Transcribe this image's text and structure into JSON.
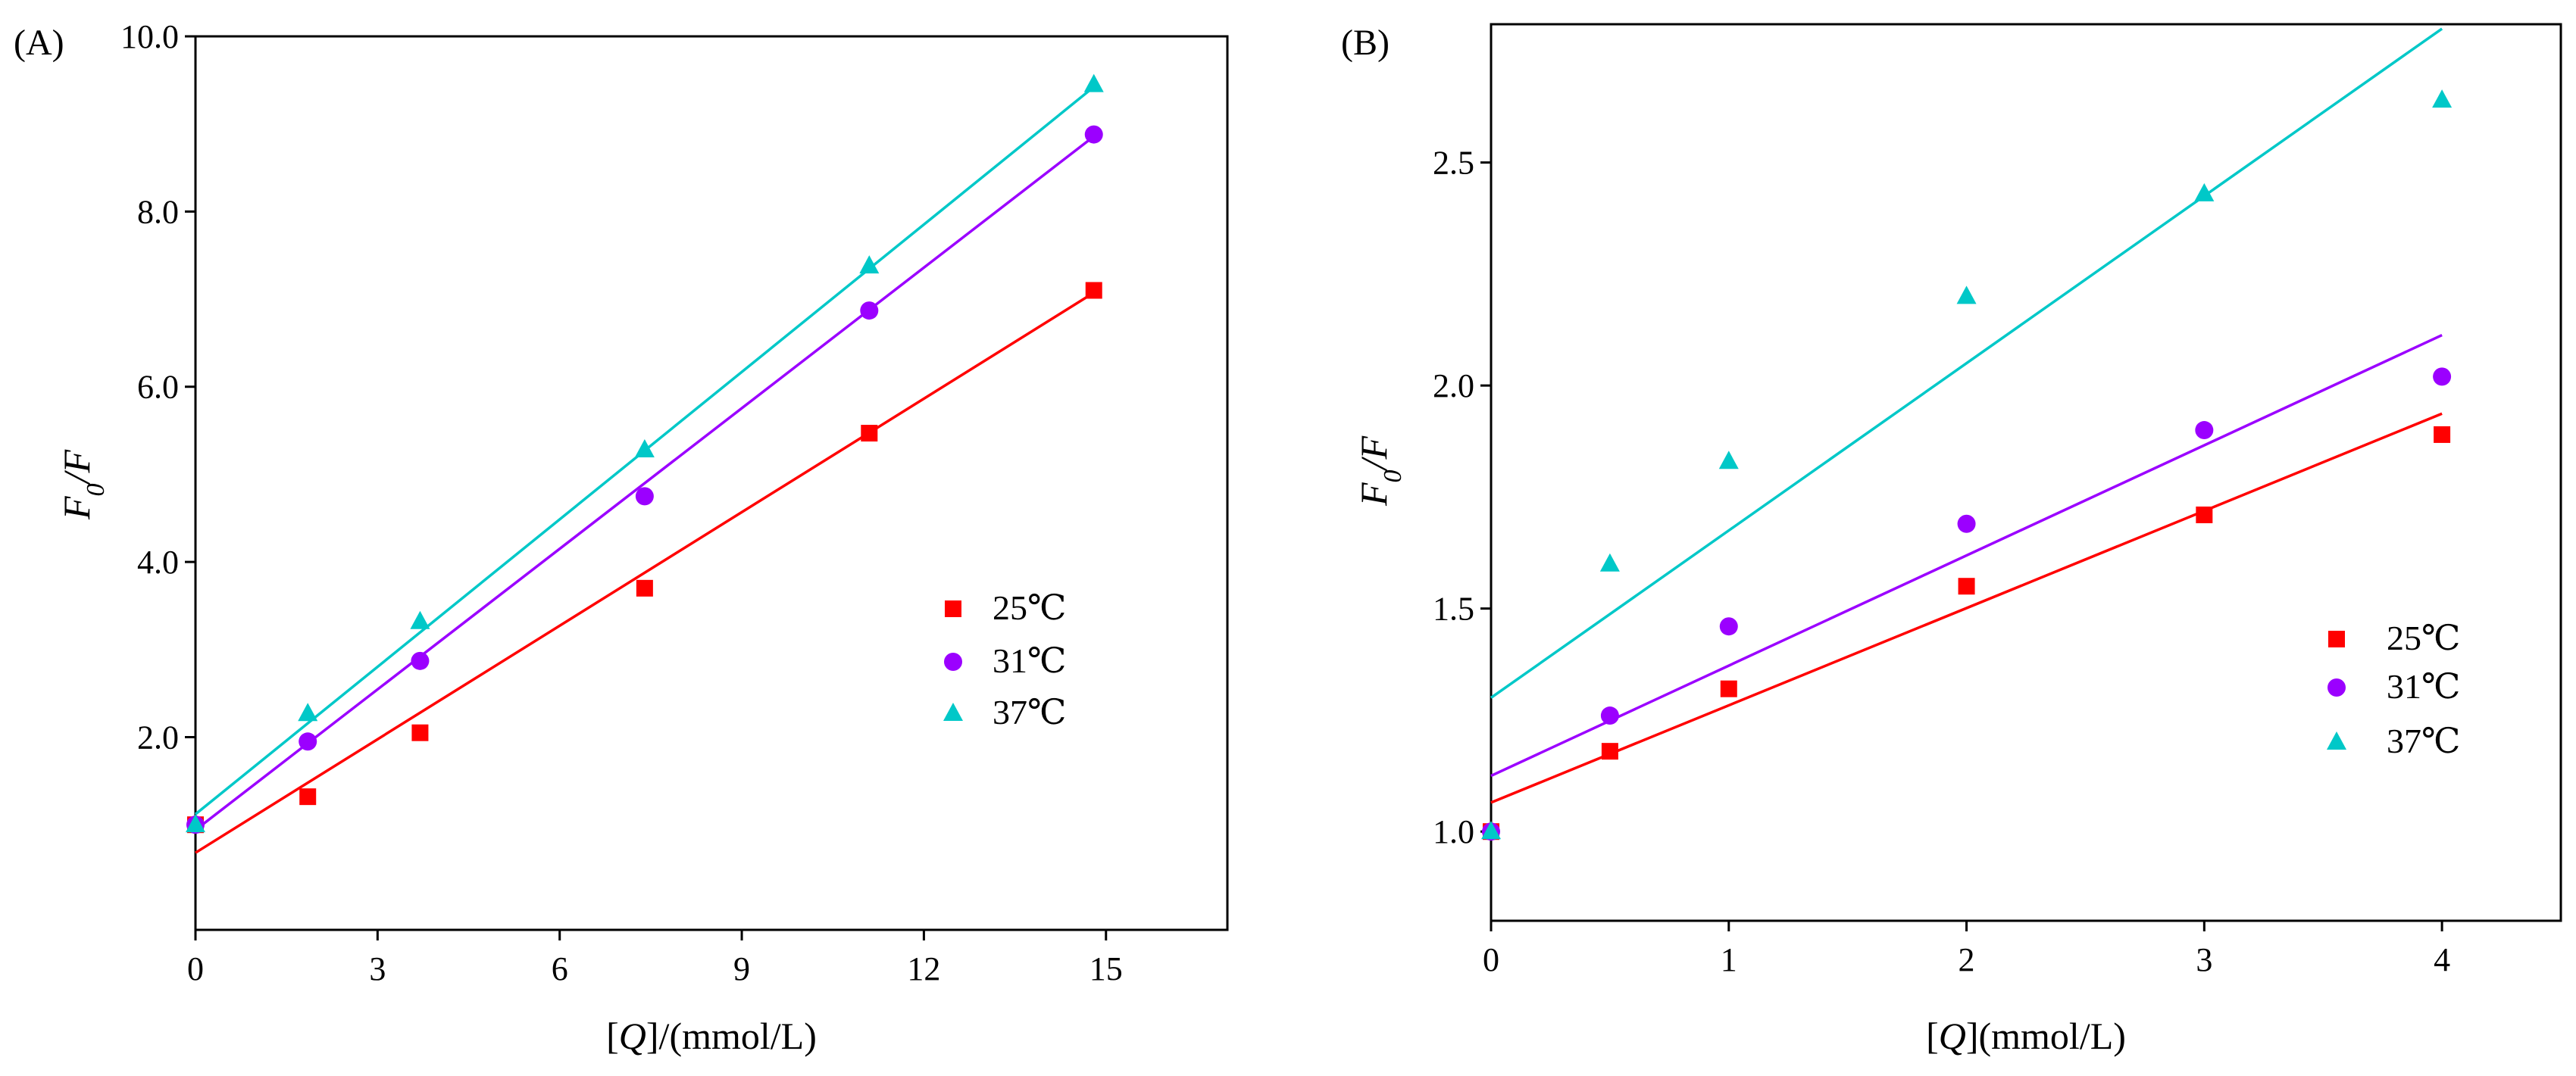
{
  "chart_data": [
    {
      "id": "A",
      "type": "scatter",
      "panel_label": "(A)",
      "x_label_parts": [
        "[",
        "Q",
        "]/(mmol/L)"
      ],
      "y_label_parts": [
        "F",
        "0",
        "/F"
      ],
      "xlim": [
        0,
        17
      ],
      "ylim": [
        -0.2,
        10.0
      ],
      "x_ticks": [
        0,
        3,
        6,
        9,
        12,
        15
      ],
      "x_tick_labels": [
        "0",
        "3",
        "6",
        "9",
        "12",
        "15"
      ],
      "y_ticks": [
        2,
        4,
        6,
        8,
        10
      ],
      "y_tick_labels": [
        "2.0",
        "4.0",
        "6.0",
        "8.0",
        "10.0"
      ],
      "legend_position": "center-right",
      "series": [
        {
          "name": "25℃",
          "color": "#ff0000",
          "marker": "square",
          "x": [
            0,
            1.85,
            3.7,
            7.4,
            11.1,
            14.8
          ],
          "y": [
            1.0,
            1.32,
            2.05,
            3.7,
            5.47,
            7.1
          ],
          "fit": {
            "intercept": 0.68,
            "slope": 0.432,
            "x_range": [
              0,
              14.8
            ]
          }
        },
        {
          "name": "31℃",
          "color": "#9b00ff",
          "marker": "circle",
          "x": [
            0,
            1.85,
            3.7,
            7.4,
            11.1,
            14.8
          ],
          "y": [
            1.0,
            1.95,
            2.87,
            4.75,
            6.87,
            8.88
          ],
          "fit": {
            "intercept": 0.94,
            "slope": 0.535,
            "x_range": [
              0,
              14.8
            ]
          }
        },
        {
          "name": "37℃",
          "color": "#00c8c8",
          "marker": "triangle",
          "x": [
            0,
            1.85,
            3.7,
            7.4,
            11.1,
            14.8
          ],
          "y": [
            1.0,
            2.27,
            3.32,
            5.28,
            7.38,
            9.45
          ],
          "fit": {
            "intercept": 1.12,
            "slope": 0.561,
            "x_range": [
              0,
              14.8
            ]
          }
        }
      ]
    },
    {
      "id": "B",
      "type": "scatter",
      "panel_label": "(B)",
      "x_label_parts": [
        "[",
        "Q",
        "](mmol/L)"
      ],
      "y_label_parts": [
        "F",
        "0",
        "/F"
      ],
      "xlim": [
        0,
        4.5
      ],
      "ylim": [
        0.8,
        2.81
      ],
      "x_ticks": [
        0,
        1,
        2,
        3,
        4
      ],
      "x_tick_labels": [
        "0",
        "1",
        "2",
        "3",
        "4"
      ],
      "y_ticks": [
        1.0,
        1.5,
        2.0,
        2.5
      ],
      "y_tick_labels": [
        "1.0",
        "1.5",
        "2.0",
        "2.5"
      ],
      "legend_position": "bottom-right",
      "series": [
        {
          "name": "25℃",
          "color": "#ff0000",
          "marker": "square",
          "x": [
            0,
            0.5,
            1,
            2,
            3,
            4
          ],
          "y": [
            1.0,
            1.18,
            1.32,
            1.55,
            1.71,
            1.89
          ],
          "fit": {
            "intercept": 1.065,
            "slope": 0.218,
            "x_range": [
              0,
              4
            ]
          }
        },
        {
          "name": "31℃",
          "color": "#9b00ff",
          "marker": "circle",
          "x": [
            0,
            0.5,
            1,
            2,
            3,
            4
          ],
          "y": [
            1.0,
            1.26,
            1.46,
            1.69,
            1.9,
            2.02
          ],
          "fit": {
            "intercept": 1.125,
            "slope": 0.247,
            "x_range": [
              0,
              4
            ]
          }
        },
        {
          "name": "37℃",
          "color": "#00c8c8",
          "marker": "triangle",
          "x": [
            0,
            0.5,
            1,
            2,
            3,
            4
          ],
          "y": [
            1.0,
            1.6,
            1.83,
            2.2,
            2.43,
            2.64
          ],
          "fit": {
            "intercept": 1.3,
            "slope": 0.375,
            "x_range": [
              0,
              4
            ]
          }
        }
      ]
    }
  ]
}
